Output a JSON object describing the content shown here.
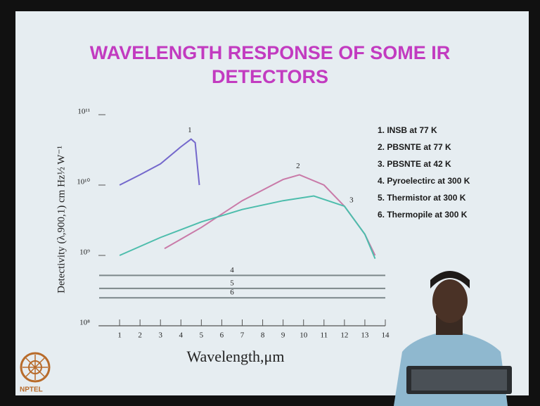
{
  "chart_data": {
    "type": "line",
    "title": "WAVELENGTH RESPONSE OF SOME IR DETECTORS",
    "xlabel": "Wavelength,μm",
    "ylabel": "Detectivity (λ,900,1) cm Hz½ W⁻¹",
    "log_y": true,
    "grid": false,
    "legend": "right",
    "xlim": [
      0,
      14
    ],
    "xticks": [
      1,
      2,
      3,
      4,
      5,
      6,
      7,
      8,
      9,
      10,
      11,
      12,
      13,
      14
    ],
    "ylim": [
      100000000,
      100000000000
    ],
    "yticks": [
      {
        "value": 100000000,
        "label": "10⁸"
      },
      {
        "value": 1000000000,
        "label": "10⁹"
      },
      {
        "value": 10000000000,
        "label": "10¹⁰"
      },
      {
        "value": 100000000000,
        "label": "10¹¹"
      }
    ],
    "series": [
      {
        "name": "1. INSB at 77 K",
        "label": "1",
        "color": "#7468cc",
        "x": [
          1,
          2,
          3,
          4,
          4.5,
          4.7,
          4.8,
          4.9
        ],
        "values": [
          10000000000,
          14000000000,
          20000000000,
          35000000000,
          45000000000,
          40000000000,
          20000000000,
          10000000000
        ]
      },
      {
        "name": "2. PBSNTE at 77 K",
        "label": "2",
        "color": "#c97aa8",
        "x": [
          3.2,
          5,
          7,
          9,
          9.8,
          11,
          12,
          13,
          13.5
        ],
        "values": [
          1250000000,
          2500000000,
          6000000000,
          12000000000,
          14000000000,
          10000000000,
          5000000000,
          2000000000,
          1000000000
        ]
      },
      {
        "name": "3. PBSNTE at 42 K",
        "label": "3",
        "color": "#4dbdac",
        "x": [
          1,
          3,
          5,
          7,
          9,
          10.5,
          12,
          13,
          13.5
        ],
        "values": [
          1000000000,
          1800000000,
          3000000000,
          4500000000,
          6000000000,
          7000000000,
          5000000000,
          2000000000,
          900000000
        ]
      },
      {
        "name": "4. Pyroelectirc at 300 K",
        "label": "4",
        "color": "#7c878a",
        "x": [
          0,
          14
        ],
        "values": [
          520000000,
          520000000
        ]
      },
      {
        "name": "5. Thermistor at 300 K",
        "label": "5",
        "color": "#7c878a",
        "x": [
          0,
          14
        ],
        "values": [
          340000000,
          340000000
        ]
      },
      {
        "name": "6. Thermopile at 300 K",
        "label": "6",
        "color": "#7c878a",
        "x": [
          0,
          14
        ],
        "values": [
          250000000,
          250000000
        ]
      }
    ]
  },
  "logo": {
    "text": "NPTEL"
  }
}
